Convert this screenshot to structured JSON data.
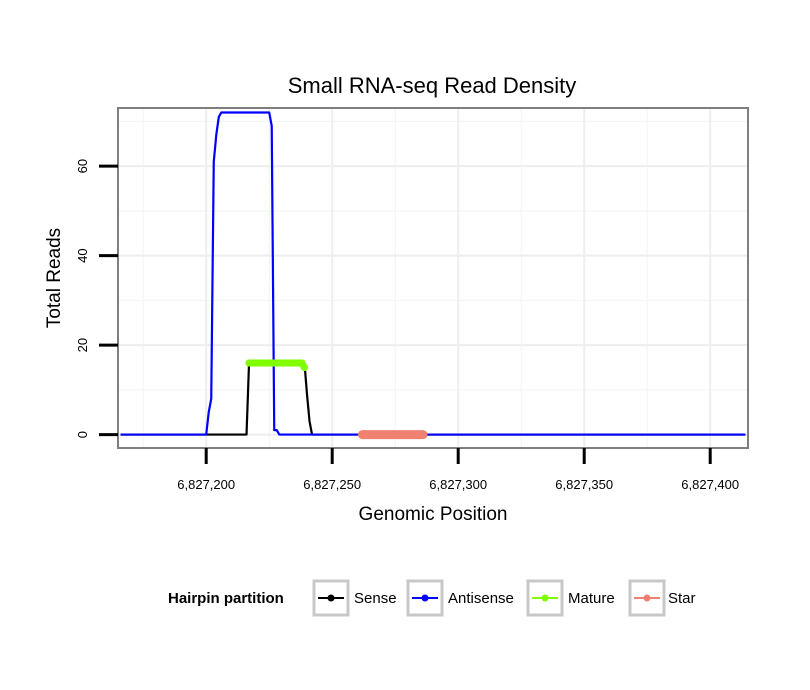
{
  "chart_data": {
    "type": "line",
    "title": "Small RNA-seq Read Density",
    "xlabel": "Genomic Position",
    "ylabel": "Total Reads",
    "xlim": [
      6827165,
      6827415
    ],
    "ylim": [
      -3,
      73
    ],
    "x_ticks": [
      6827200,
      6827250,
      6827300,
      6827350,
      6827400
    ],
    "x_tick_labels": [
      "6,827,200",
      "6,827,250",
      "6,827,300",
      "6,827,350",
      "6,827,400"
    ],
    "y_ticks": [
      0,
      20,
      40,
      60
    ],
    "y_tick_labels": [
      "0",
      "20",
      "40",
      "60"
    ],
    "grid": true,
    "legend": {
      "title": "Hairpin partition",
      "position": "bottom",
      "entries": [
        "Sense",
        "Antisense",
        "Mature",
        "Star"
      ]
    },
    "series": [
      {
        "name": "Sense",
        "color": "#000000",
        "points": [
          [
            6827166,
            0
          ],
          [
            6827216,
            0
          ],
          [
            6827217,
            16
          ],
          [
            6827239,
            16
          ],
          [
            6827240,
            9
          ],
          [
            6827241,
            3
          ],
          [
            6827242,
            0
          ],
          [
            6827414,
            0
          ]
        ]
      },
      {
        "name": "Antisense",
        "color": "#0000ff",
        "points": [
          [
            6827166,
            0
          ],
          [
            6827200,
            0
          ],
          [
            6827201,
            5
          ],
          [
            6827202,
            8
          ],
          [
            6827203,
            61
          ],
          [
            6827204,
            67
          ],
          [
            6827205,
            71
          ],
          [
            6827206,
            72
          ],
          [
            6827225,
            72
          ],
          [
            6827226,
            69
          ],
          [
            6827227,
            1
          ],
          [
            6827228,
            1
          ],
          [
            6827229,
            0
          ],
          [
            6827414,
            0
          ]
        ]
      },
      {
        "name": "Mature",
        "color": "#7fff00",
        "points": [
          [
            6827217,
            16
          ],
          [
            6827238,
            16
          ],
          [
            6827239,
            15
          ]
        ]
      },
      {
        "name": "Star",
        "color": "#f08070",
        "points": [
          [
            6827262,
            0
          ],
          [
            6827286,
            0
          ]
        ]
      }
    ]
  }
}
